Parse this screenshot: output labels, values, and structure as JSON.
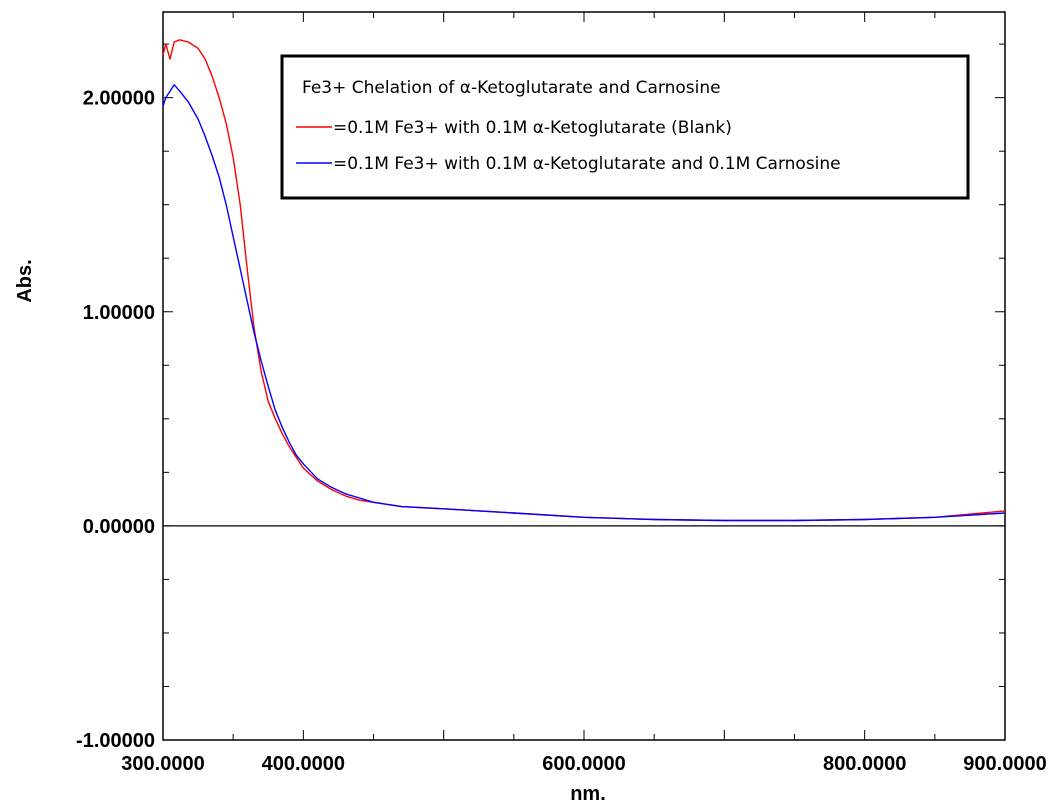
{
  "chart_data": {
    "type": "line",
    "title": "",
    "xlabel": "nm.",
    "ylabel": "Abs.",
    "xlim": [
      300,
      900
    ],
    "ylim": [
      -1,
      2.4
    ],
    "x_ticks": [
      {
        "value": 300,
        "label": "300.0000"
      },
      {
        "value": 400,
        "label": "400.0000"
      },
      {
        "value": 600,
        "label": "600.0000"
      },
      {
        "value": 800,
        "label": "800.0000"
      },
      {
        "value": 900,
        "label": "900.0000"
      }
    ],
    "y_ticks": [
      {
        "value": -1,
        "label": "-1.00000"
      },
      {
        "value": 0,
        "label": "0.00000"
      },
      {
        "value": 1,
        "label": "1.00000"
      },
      {
        "value": 2,
        "label": "2.00000"
      }
    ],
    "zero_line": true,
    "grid": false,
    "legend": {
      "title": "Fe3+ Chelation of α-Ketoglutarate and Carnosine",
      "position": "top-right"
    },
    "series": [
      {
        "name": "=0.1M Fe3+ with 0.1M α-Ketoglutarate (Blank)",
        "color": "#ff0000",
        "x": [
          300,
          302,
          305,
          308,
          312,
          318,
          325,
          330,
          335,
          340,
          345,
          350,
          355,
          360,
          365,
          370,
          375,
          380,
          385,
          390,
          395,
          400,
          410,
          420,
          430,
          440,
          450,
          470,
          500,
          550,
          600,
          650,
          700,
          750,
          800,
          850,
          900
        ],
        "y": [
          2.2,
          2.25,
          2.18,
          2.26,
          2.27,
          2.26,
          2.23,
          2.18,
          2.1,
          2.0,
          1.88,
          1.72,
          1.5,
          1.2,
          0.92,
          0.72,
          0.58,
          0.5,
          0.43,
          0.37,
          0.32,
          0.27,
          0.21,
          0.17,
          0.14,
          0.12,
          0.11,
          0.09,
          0.08,
          0.06,
          0.04,
          0.03,
          0.025,
          0.025,
          0.03,
          0.04,
          0.07
        ]
      },
      {
        "name": "=0.1M Fe3+ with 0.1M α-Ketoglutarate and 0.1M Carnosine",
        "color": "#0000ff",
        "x": [
          300,
          302,
          305,
          308,
          312,
          318,
          325,
          330,
          335,
          340,
          345,
          350,
          355,
          360,
          365,
          370,
          375,
          380,
          385,
          390,
          395,
          400,
          410,
          420,
          430,
          440,
          450,
          470,
          500,
          550,
          600,
          650,
          700,
          750,
          800,
          850,
          900
        ],
        "y": [
          1.96,
          2.0,
          2.03,
          2.06,
          2.03,
          1.98,
          1.9,
          1.82,
          1.73,
          1.63,
          1.5,
          1.35,
          1.2,
          1.05,
          0.9,
          0.77,
          0.65,
          0.54,
          0.46,
          0.39,
          0.33,
          0.29,
          0.22,
          0.18,
          0.15,
          0.13,
          0.11,
          0.09,
          0.08,
          0.06,
          0.04,
          0.03,
          0.025,
          0.025,
          0.03,
          0.04,
          0.06
        ]
      }
    ]
  }
}
